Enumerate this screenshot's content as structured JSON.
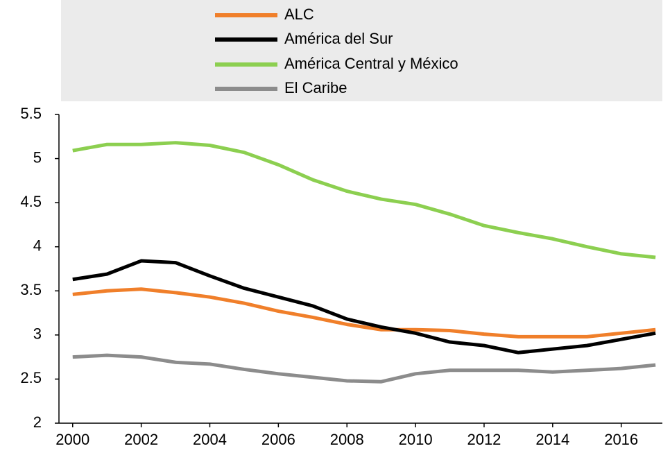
{
  "chart_data": {
    "type": "line",
    "x": [
      2000,
      2001,
      2002,
      2003,
      2004,
      2005,
      2006,
      2007,
      2008,
      2009,
      2010,
      2011,
      2012,
      2013,
      2014,
      2015,
      2016,
      2017
    ],
    "series": [
      {
        "name": "ALC",
        "color": "#f07f2a",
        "values": [
          3.46,
          3.5,
          3.52,
          3.48,
          3.43,
          3.36,
          3.27,
          3.2,
          3.12,
          3.06,
          3.06,
          3.05,
          3.01,
          2.98,
          2.98,
          2.98,
          3.02,
          3.06
        ]
      },
      {
        "name": "América del Sur",
        "color": "#000000",
        "values": [
          3.63,
          3.69,
          3.84,
          3.82,
          3.67,
          3.53,
          3.43,
          3.33,
          3.18,
          3.09,
          3.02,
          2.92,
          2.88,
          2.8,
          2.84,
          2.88,
          2.95,
          3.02
        ]
      },
      {
        "name": "América Central y México",
        "color": "#8ccf50",
        "values": [
          5.09,
          5.16,
          5.16,
          5.18,
          5.15,
          5.07,
          4.93,
          4.76,
          4.63,
          4.54,
          4.48,
          4.37,
          4.24,
          4.16,
          4.09,
          4.0,
          3.92,
          3.88
        ]
      },
      {
        "name": "El Caribe",
        "color": "#8c8c8c",
        "values": [
          2.75,
          2.77,
          2.75,
          2.69,
          2.67,
          2.61,
          2.56,
          2.52,
          2.48,
          2.47,
          2.56,
          2.6,
          2.6,
          2.6,
          2.58,
          2.6,
          2.62,
          2.66
        ]
      }
    ],
    "xlim": [
      1999.6,
      2017.2
    ],
    "xticks": [
      2000,
      2002,
      2004,
      2006,
      2008,
      2010,
      2012,
      2014,
      2016
    ],
    "ylim": [
      2,
      5.5
    ],
    "yticks": [
      2,
      2.5,
      3,
      3.5,
      4,
      4.5,
      5,
      5.5
    ],
    "grid": false,
    "legend": "top"
  }
}
